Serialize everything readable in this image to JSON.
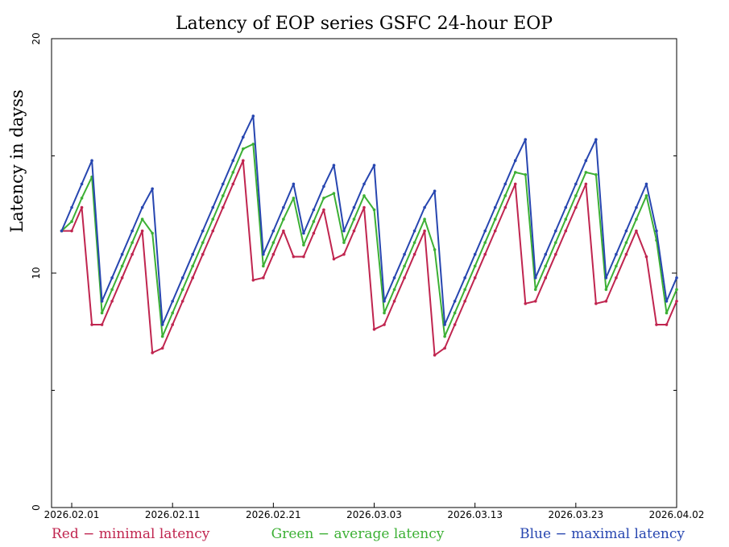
{
  "chart_data": {
    "type": "line",
    "title": "Latency of EOP  series GSFC 24-hour EOP",
    "ylabel": "Latency in dayss",
    "xlabel": "",
    "ylim": [
      0,
      20
    ],
    "y_ticks": [
      "0",
      "10",
      "20"
    ],
    "x_range": [
      "2026.01.30",
      "2026.04.02"
    ],
    "x_ticks": [
      "2026.02.01",
      "2026.02.11",
      "2026.02.21",
      "2026.03.03",
      "2026.03.13",
      "2026.03.23",
      "2026.04.02"
    ],
    "legend": [
      {
        "text": "Red − minimal latency",
        "color": "#c0254f"
      },
      {
        "text": "Green − average latency",
        "color": "#3cb034"
      },
      {
        "text": "Blue − maximal latency",
        "color": "#2746b0"
      }
    ],
    "series": [
      {
        "color": "#c0254f",
        "points": [
          [
            "2026.01.31",
            11.8
          ],
          [
            "2026.02.01",
            11.8
          ],
          [
            "2026.02.02",
            12.8
          ],
          [
            "2026.02.03",
            7.8
          ],
          [
            "2026.02.04",
            7.8
          ],
          [
            "2026.02.05",
            8.8
          ],
          [
            "2026.02.06",
            9.8
          ],
          [
            "2026.02.07",
            10.8
          ],
          [
            "2026.02.08",
            11.8
          ],
          [
            "2026.02.09",
            6.6
          ],
          [
            "2026.02.10",
            6.8
          ],
          [
            "2026.02.11",
            7.8
          ],
          [
            "2026.02.12",
            8.8
          ],
          [
            "2026.02.13",
            9.8
          ],
          [
            "2026.02.14",
            10.8
          ],
          [
            "2026.02.15",
            11.8
          ],
          [
            "2026.02.16",
            12.8
          ],
          [
            "2026.02.17",
            13.8
          ],
          [
            "2026.02.18",
            14.8
          ],
          [
            "2026.02.19",
            9.7
          ],
          [
            "2026.02.20",
            9.8
          ],
          [
            "2026.02.21",
            10.8
          ],
          [
            "2026.02.22",
            11.8
          ],
          [
            "2026.02.23",
            10.7
          ],
          [
            "2026.02.24",
            10.7
          ],
          [
            "2026.02.25",
            11.7
          ],
          [
            "2026.02.26",
            12.7
          ],
          [
            "2026.02.27",
            10.6
          ],
          [
            "2026.02.28",
            10.8
          ],
          [
            "2026.03.01",
            11.8
          ],
          [
            "2026.03.02",
            12.8
          ],
          [
            "2026.03.03",
            7.6
          ],
          [
            "2026.03.04",
            7.8
          ],
          [
            "2026.03.05",
            8.8
          ],
          [
            "2026.03.06",
            9.8
          ],
          [
            "2026.03.07",
            10.8
          ],
          [
            "2026.03.08",
            11.8
          ],
          [
            "2026.03.09",
            6.5
          ],
          [
            "2026.03.10",
            6.8
          ],
          [
            "2026.03.11",
            7.8
          ],
          [
            "2026.03.12",
            8.8
          ],
          [
            "2026.03.13",
            9.8
          ],
          [
            "2026.03.14",
            10.8
          ],
          [
            "2026.03.15",
            11.8
          ],
          [
            "2026.03.16",
            12.8
          ],
          [
            "2026.03.17",
            13.8
          ],
          [
            "2026.03.18",
            8.7
          ],
          [
            "2026.03.19",
            8.8
          ],
          [
            "2026.03.20",
            9.8
          ],
          [
            "2026.03.21",
            10.8
          ],
          [
            "2026.03.22",
            11.8
          ],
          [
            "2026.03.23",
            12.8
          ],
          [
            "2026.03.24",
            13.8
          ],
          [
            "2026.03.25",
            8.7
          ],
          [
            "2026.03.26",
            8.8
          ],
          [
            "2026.03.27",
            9.8
          ],
          [
            "2026.03.28",
            10.8
          ],
          [
            "2026.03.29",
            11.8
          ],
          [
            "2026.03.30",
            10.7
          ],
          [
            "2026.03.31",
            7.8
          ],
          [
            "2026.04.01",
            7.8
          ],
          [
            "2026.04.02",
            8.8
          ]
        ]
      },
      {
        "color": "#3cb034",
        "points": [
          [
            "2026.01.31",
            11.8
          ],
          [
            "2026.02.01",
            12.2
          ],
          [
            "2026.02.02",
            13.2
          ],
          [
            "2026.02.03",
            14.1
          ],
          [
            "2026.02.04",
            8.3
          ],
          [
            "2026.02.05",
            9.3
          ],
          [
            "2026.02.06",
            10.3
          ],
          [
            "2026.02.07",
            11.3
          ],
          [
            "2026.02.08",
            12.3
          ],
          [
            "2026.02.09",
            11.7
          ],
          [
            "2026.02.10",
            7.3
          ],
          [
            "2026.02.11",
            8.3
          ],
          [
            "2026.02.12",
            9.3
          ],
          [
            "2026.02.13",
            10.3
          ],
          [
            "2026.02.14",
            11.3
          ],
          [
            "2026.02.15",
            12.3
          ],
          [
            "2026.02.16",
            13.3
          ],
          [
            "2026.02.17",
            14.3
          ],
          [
            "2026.02.18",
            15.3
          ],
          [
            "2026.02.19",
            15.5
          ],
          [
            "2026.02.20",
            10.3
          ],
          [
            "2026.02.21",
            11.3
          ],
          [
            "2026.02.22",
            12.3
          ],
          [
            "2026.02.23",
            13.2
          ],
          [
            "2026.02.24",
            11.2
          ],
          [
            "2026.02.25",
            12.2
          ],
          [
            "2026.02.26",
            13.2
          ],
          [
            "2026.02.27",
            13.4
          ],
          [
            "2026.02.28",
            11.3
          ],
          [
            "2026.03.01",
            12.3
          ],
          [
            "2026.03.02",
            13.3
          ],
          [
            "2026.03.03",
            12.7
          ],
          [
            "2026.03.04",
            8.3
          ],
          [
            "2026.03.05",
            9.3
          ],
          [
            "2026.03.06",
            10.3
          ],
          [
            "2026.03.07",
            11.3
          ],
          [
            "2026.03.08",
            12.3
          ],
          [
            "2026.03.09",
            11.0
          ],
          [
            "2026.03.10",
            7.3
          ],
          [
            "2026.03.11",
            8.3
          ],
          [
            "2026.03.12",
            9.3
          ],
          [
            "2026.03.13",
            10.3
          ],
          [
            "2026.03.14",
            11.3
          ],
          [
            "2026.03.15",
            12.3
          ],
          [
            "2026.03.16",
            13.3
          ],
          [
            "2026.03.17",
            14.3
          ],
          [
            "2026.03.18",
            14.2
          ],
          [
            "2026.03.19",
            9.3
          ],
          [
            "2026.03.20",
            10.3
          ],
          [
            "2026.03.21",
            11.3
          ],
          [
            "2026.03.22",
            12.3
          ],
          [
            "2026.03.23",
            13.3
          ],
          [
            "2026.03.24",
            14.3
          ],
          [
            "2026.03.25",
            14.2
          ],
          [
            "2026.03.26",
            9.3
          ],
          [
            "2026.03.27",
            10.3
          ],
          [
            "2026.03.28",
            11.3
          ],
          [
            "2026.03.29",
            12.3
          ],
          [
            "2026.03.30",
            13.3
          ],
          [
            "2026.03.31",
            11.4
          ],
          [
            "2026.04.01",
            8.3
          ],
          [
            "2026.04.02",
            9.3
          ]
        ]
      },
      {
        "color": "#2746b0",
        "points": [
          [
            "2026.01.31",
            11.8
          ],
          [
            "2026.02.01",
            12.8
          ],
          [
            "2026.02.02",
            13.8
          ],
          [
            "2026.02.03",
            14.8
          ],
          [
            "2026.02.04",
            8.8
          ],
          [
            "2026.02.05",
            9.8
          ],
          [
            "2026.02.06",
            10.8
          ],
          [
            "2026.02.07",
            11.8
          ],
          [
            "2026.02.08",
            12.8
          ],
          [
            "2026.02.09",
            13.6
          ],
          [
            "2026.02.10",
            7.8
          ],
          [
            "2026.02.11",
            8.8
          ],
          [
            "2026.02.12",
            9.8
          ],
          [
            "2026.02.13",
            10.8
          ],
          [
            "2026.02.14",
            11.8
          ],
          [
            "2026.02.15",
            12.8
          ],
          [
            "2026.02.16",
            13.8
          ],
          [
            "2026.02.17",
            14.8
          ],
          [
            "2026.02.18",
            15.8
          ],
          [
            "2026.02.19",
            16.7
          ],
          [
            "2026.02.20",
            10.8
          ],
          [
            "2026.02.21",
            11.8
          ],
          [
            "2026.02.22",
            12.8
          ],
          [
            "2026.02.23",
            13.8
          ],
          [
            "2026.02.24",
            11.7
          ],
          [
            "2026.02.25",
            12.7
          ],
          [
            "2026.02.26",
            13.7
          ],
          [
            "2026.02.27",
            14.6
          ],
          [
            "2026.02.28",
            11.8
          ],
          [
            "2026.03.01",
            12.8
          ],
          [
            "2026.03.02",
            13.8
          ],
          [
            "2026.03.03",
            14.6
          ],
          [
            "2026.03.04",
            8.8
          ],
          [
            "2026.03.05",
            9.8
          ],
          [
            "2026.03.06",
            10.8
          ],
          [
            "2026.03.07",
            11.8
          ],
          [
            "2026.03.08",
            12.8
          ],
          [
            "2026.03.09",
            13.5
          ],
          [
            "2026.03.10",
            7.8
          ],
          [
            "2026.03.11",
            8.8
          ],
          [
            "2026.03.12",
            9.8
          ],
          [
            "2026.03.13",
            10.8
          ],
          [
            "2026.03.14",
            11.8
          ],
          [
            "2026.03.15",
            12.8
          ],
          [
            "2026.03.16",
            13.8
          ],
          [
            "2026.03.17",
            14.8
          ],
          [
            "2026.03.18",
            15.7
          ],
          [
            "2026.03.19",
            9.8
          ],
          [
            "2026.03.20",
            10.8
          ],
          [
            "2026.03.21",
            11.8
          ],
          [
            "2026.03.22",
            12.8
          ],
          [
            "2026.03.23",
            13.8
          ],
          [
            "2026.03.24",
            14.8
          ],
          [
            "2026.03.25",
            15.7
          ],
          [
            "2026.03.26",
            9.8
          ],
          [
            "2026.03.27",
            10.8
          ],
          [
            "2026.03.28",
            11.8
          ],
          [
            "2026.03.29",
            12.8
          ],
          [
            "2026.03.30",
            13.8
          ],
          [
            "2026.03.31",
            11.8
          ],
          [
            "2026.04.01",
            8.8
          ],
          [
            "2026.04.02",
            9.8
          ]
        ]
      }
    ]
  }
}
